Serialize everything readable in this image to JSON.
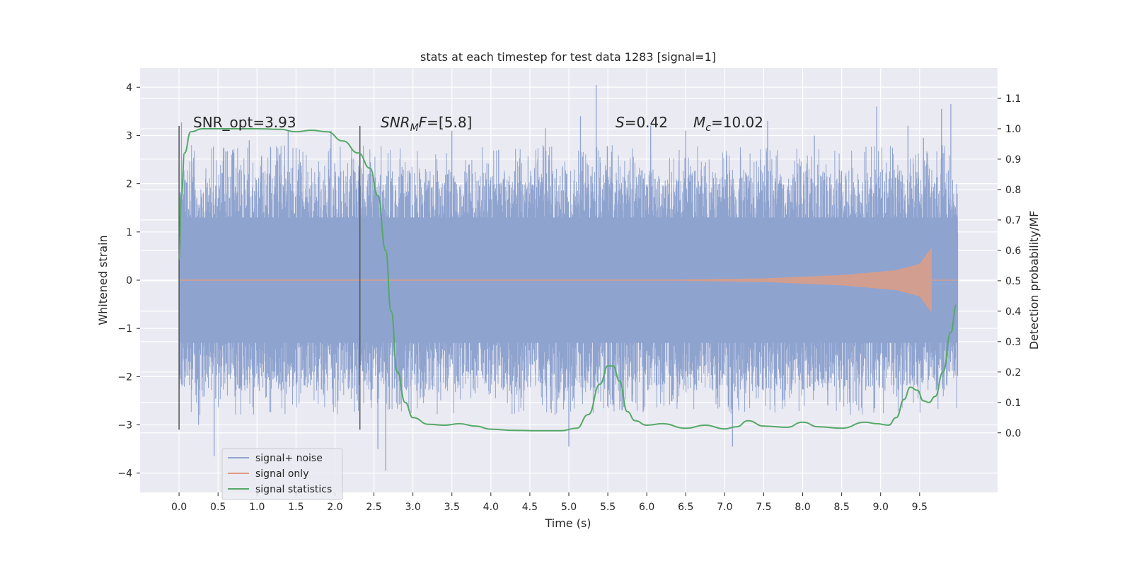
{
  "chart_data": {
    "type": "line",
    "title": "stats at each timestep for test data 1283 [signal=1]",
    "xlabel": "Time (s)",
    "ylabel_left": "Whitened strain",
    "ylabel_right": "Detection probability/MF",
    "x_ticks": [
      "0.0",
      "0.5",
      "1.0",
      "1.5",
      "2.0",
      "2.5",
      "3.0",
      "3.5",
      "4.0",
      "4.5",
      "5.0",
      "5.5",
      "6.0",
      "6.5",
      "7.0",
      "7.5",
      "8.0",
      "8.5",
      "9.0",
      "9.5"
    ],
    "y_left_ticks": [
      "−4",
      "−3",
      "−2",
      "−1",
      "0",
      "1",
      "2",
      "3",
      "4"
    ],
    "y_right_ticks": [
      "0.0",
      "0.1",
      "0.2",
      "0.3",
      "0.4",
      "0.5",
      "0.6",
      "0.7",
      "0.8",
      "0.9",
      "1.0",
      "1.1"
    ],
    "xlim": [
      -0.5,
      10.5
    ],
    "ylim_left": [
      -4.4,
      4.4
    ],
    "ylim_right": [
      -0.196,
      1.2
    ],
    "grid": true,
    "legend_position": "lower-left",
    "annotations": {
      "snr_opt": "SNR_opt=3.93",
      "snr_mf": "=[5.8]",
      "snr_mf_symbol": "SNR",
      "snr_mf_sub": "M",
      "snr_mf_f": "F",
      "s_symbol": "S",
      "s_value": "=0.42",
      "mc_symbol": "M",
      "mc_sub": "c",
      "mc_value": "=10.02"
    },
    "vertical_markers": [
      {
        "x": 0.0,
        "y_range": [
          -3.1,
          3.2
        ]
      },
      {
        "x": 2.32,
        "y_range": [
          -3.1,
          3.2
        ]
      }
    ],
    "series": [
      {
        "name": "signal+ noise",
        "color": "#8fa3cf",
        "kind": "noise-band",
        "x_range": [
          0.0,
          9.99
        ],
        "core_band": [
          -1.3,
          1.3
        ],
        "typical_peak_range": [
          1.6,
          2.8
        ],
        "spikes": [
          {
            "x": 0.03,
            "y": 3.27
          },
          {
            "x": 0.25,
            "y": -3.0
          },
          {
            "x": 0.45,
            "y": -3.65
          },
          {
            "x": 0.9,
            "y": 2.9
          },
          {
            "x": 1.4,
            "y": 3.1
          },
          {
            "x": 1.95,
            "y": 3.1
          },
          {
            "x": 2.55,
            "y": -3.5
          },
          {
            "x": 2.65,
            "y": -3.95
          },
          {
            "x": 3.5,
            "y": 3.1
          },
          {
            "x": 4.1,
            "y": 2.7
          },
          {
            "x": 4.7,
            "y": 3.15
          },
          {
            "x": 5.0,
            "y": -3.45
          },
          {
            "x": 5.35,
            "y": 4.05
          },
          {
            "x": 5.15,
            "y": 3.4
          },
          {
            "x": 6.05,
            "y": 3.2
          },
          {
            "x": 6.5,
            "y": 3.1
          },
          {
            "x": 7.1,
            "y": -3.45
          },
          {
            "x": 7.55,
            "y": 3.3
          },
          {
            "x": 8.15,
            "y": 3.0
          },
          {
            "x": 8.95,
            "y": 3.6
          },
          {
            "x": 9.35,
            "y": 3.2
          },
          {
            "x": 9.55,
            "y": 2.95
          },
          {
            "x": 9.78,
            "y": 3.55
          },
          {
            "x": 9.9,
            "y": 3.65
          }
        ]
      },
      {
        "name": "signal only",
        "color": "#dd9e84",
        "kind": "chirp",
        "x_start": 6.5,
        "x_peak": 9.65,
        "amplitude_at": [
          {
            "x": 6.5,
            "y": 0.01
          },
          {
            "x": 7.5,
            "y": 0.03
          },
          {
            "x": 8.5,
            "y": 0.1
          },
          {
            "x": 9.2,
            "y": 0.2
          },
          {
            "x": 9.5,
            "y": 0.33
          },
          {
            "x": 9.65,
            "y": 0.65
          }
        ]
      },
      {
        "name": "signal statistics",
        "color": "#55a868",
        "axis": "right",
        "x": [
          0.0,
          0.03,
          0.07,
          0.15,
          0.3,
          0.6,
          1.0,
          1.3,
          1.5,
          1.7,
          1.9,
          2.1,
          2.3,
          2.45,
          2.55,
          2.65,
          2.72,
          2.8,
          2.9,
          3.0,
          3.2,
          3.4,
          3.6,
          3.8,
          4.0,
          4.3,
          4.6,
          4.9,
          5.1,
          5.25,
          5.4,
          5.5,
          5.57,
          5.65,
          5.75,
          5.85,
          6.0,
          6.2,
          6.5,
          6.75,
          7.0,
          7.15,
          7.3,
          7.5,
          7.8,
          8.0,
          8.2,
          8.5,
          8.8,
          8.95,
          9.1,
          9.2,
          9.3,
          9.38,
          9.47,
          9.55,
          9.62,
          9.7,
          9.8,
          9.9,
          9.97
        ],
        "y": [
          0.57,
          0.78,
          0.92,
          0.99,
          1.0,
          1.0,
          1.0,
          0.998,
          0.99,
          0.995,
          0.99,
          0.96,
          0.92,
          0.87,
          0.78,
          0.6,
          0.4,
          0.2,
          0.1,
          0.05,
          0.028,
          0.025,
          0.03,
          0.022,
          0.012,
          0.008,
          0.007,
          0.007,
          0.015,
          0.06,
          0.16,
          0.22,
          0.22,
          0.17,
          0.07,
          0.04,
          0.025,
          0.03,
          0.015,
          0.025,
          0.013,
          0.02,
          0.04,
          0.022,
          0.018,
          0.035,
          0.02,
          0.015,
          0.035,
          0.03,
          0.025,
          0.05,
          0.11,
          0.15,
          0.14,
          0.105,
          0.1,
          0.12,
          0.2,
          0.33,
          0.42
        ]
      }
    ]
  }
}
